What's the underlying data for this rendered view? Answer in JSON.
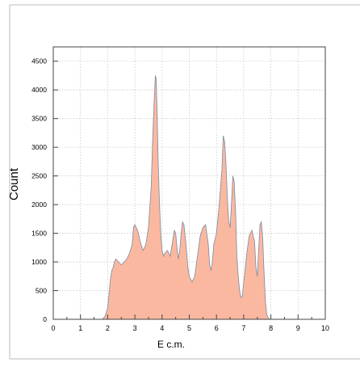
{
  "chart_data": {
    "type": "area",
    "title": "",
    "xlabel": "E c.m.",
    "ylabel": "Count",
    "xlim": [
      0,
      10
    ],
    "ylim": [
      0,
      4750
    ],
    "x_ticks": [
      "0",
      "1",
      "2",
      "3",
      "4",
      "5",
      "6",
      "7",
      "8",
      "9",
      "10"
    ],
    "y_ticks": [
      "0",
      "500",
      "1000",
      "1500",
      "2000",
      "2500",
      "3000",
      "3500",
      "4000",
      "4500"
    ],
    "grid": true,
    "fill_color": "#fbb8a0",
    "line_color": "#7a8aa0",
    "series": [
      {
        "x": [
          1.8,
          1.9,
          2.0,
          2.05,
          2.1,
          2.15,
          2.2,
          2.25,
          2.3,
          2.4,
          2.5,
          2.6,
          2.7,
          2.8,
          2.9,
          2.95,
          3.0,
          3.05,
          3.1,
          3.15,
          3.2,
          3.3,
          3.4,
          3.5,
          3.6,
          3.65,
          3.7,
          3.75,
          3.78,
          3.82,
          3.85,
          3.9,
          3.95,
          4.0,
          4.05,
          4.1,
          4.2,
          4.3,
          4.4,
          4.45,
          4.5,
          4.55,
          4.6,
          4.65,
          4.7,
          4.75,
          4.8,
          4.85,
          4.9,
          4.95,
          5.0,
          5.1,
          5.2,
          5.3,
          5.4,
          5.5,
          5.6,
          5.7,
          5.75,
          5.8,
          5.85,
          5.9,
          6.0,
          6.1,
          6.2,
          6.25,
          6.3,
          6.35,
          6.4,
          6.45,
          6.5,
          6.55,
          6.6,
          6.65,
          6.7,
          6.75,
          6.8,
          6.85,
          6.9,
          6.95,
          7.0,
          7.05,
          7.1,
          7.2,
          7.3,
          7.4,
          7.45,
          7.5,
          7.55,
          7.6,
          7.65,
          7.7,
          7.75,
          7.8,
          7.85,
          7.9,
          7.95,
          8.0
        ],
        "y": [
          0,
          50,
          200,
          450,
          700,
          850,
          900,
          1000,
          1050,
          1000,
          950,
          1000,
          1050,
          1150,
          1300,
          1600,
          1650,
          1600,
          1550,
          1450,
          1350,
          1200,
          1300,
          1600,
          2300,
          3100,
          3700,
          4250,
          4200,
          3600,
          2900,
          2100,
          1500,
          1200,
          1100,
          1150,
          1200,
          1100,
          1400,
          1550,
          1500,
          1250,
          1050,
          1200,
          1500,
          1700,
          1650,
          1450,
          1200,
          900,
          750,
          650,
          750,
          1100,
          1450,
          1600,
          1650,
          1300,
          950,
          850,
          1000,
          1300,
          1500,
          2000,
          2600,
          3200,
          3100,
          2700,
          2100,
          1700,
          1600,
          2000,
          2500,
          2400,
          1900,
          1100,
          750,
          500,
          380,
          400,
          650,
          850,
          1100,
          1450,
          1550,
          1350,
          900,
          750,
          1200,
          1650,
          1700,
          1400,
          800,
          300,
          80,
          30,
          0,
          0
        ]
      }
    ]
  }
}
